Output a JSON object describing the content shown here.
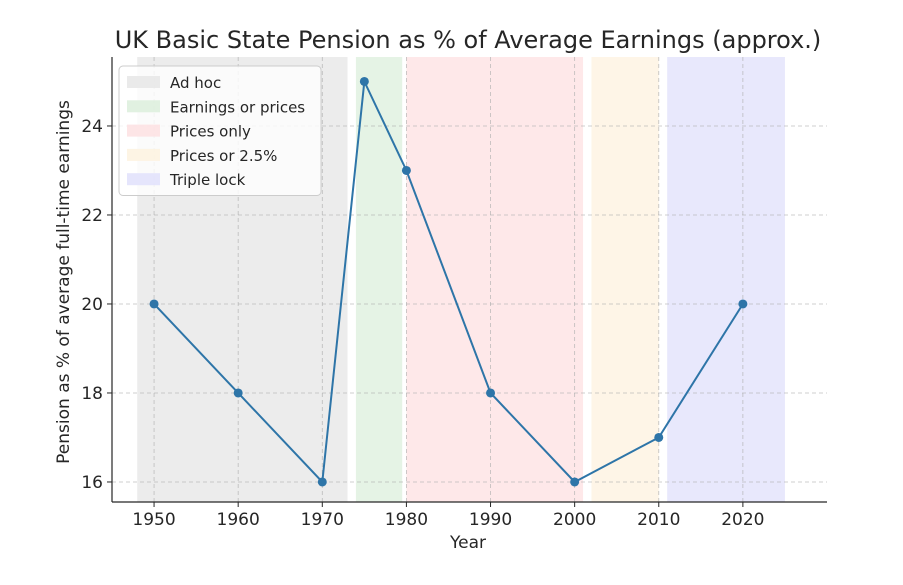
{
  "chart_data": {
    "type": "line",
    "title": "UK Basic State Pension as % of Average Earnings (approx.)",
    "xlabel": "Year",
    "ylabel": "Pension as % of average full-time earnings",
    "xlim": [
      1945,
      2030
    ],
    "ylim": [
      15.55,
      25.55
    ],
    "x_ticks": [
      1950,
      1960,
      1970,
      1980,
      1990,
      2000,
      2010,
      2020
    ],
    "y_ticks": [
      16,
      18,
      20,
      22,
      24
    ],
    "grid": true,
    "legend_position": "top-left",
    "series": [
      {
        "color": "#2e75a8",
        "x": [
          1950,
          1960,
          1970,
          1975,
          1980,
          1990,
          2000,
          2010,
          2020
        ],
        "y": [
          20,
          18,
          16,
          25,
          23,
          18,
          16,
          17,
          20
        ]
      }
    ],
    "regions": [
      {
        "name": "Ad hoc",
        "start": 1948,
        "end": 1973,
        "color": "#e6e6e6"
      },
      {
        "name": "Earnings or prices",
        "start": 1974,
        "end": 1979.5,
        "color": "#dcefdc"
      },
      {
        "name": "Prices only",
        "start": 1980,
        "end": 2001,
        "color": "#fde0e2"
      },
      {
        "name": "Prices or 2.5%",
        "start": 2002,
        "end": 2010,
        "color": "#fdf2df"
      },
      {
        "name": "Triple lock",
        "start": 2011,
        "end": 2025,
        "color": "#e0e0fb"
      }
    ]
  }
}
